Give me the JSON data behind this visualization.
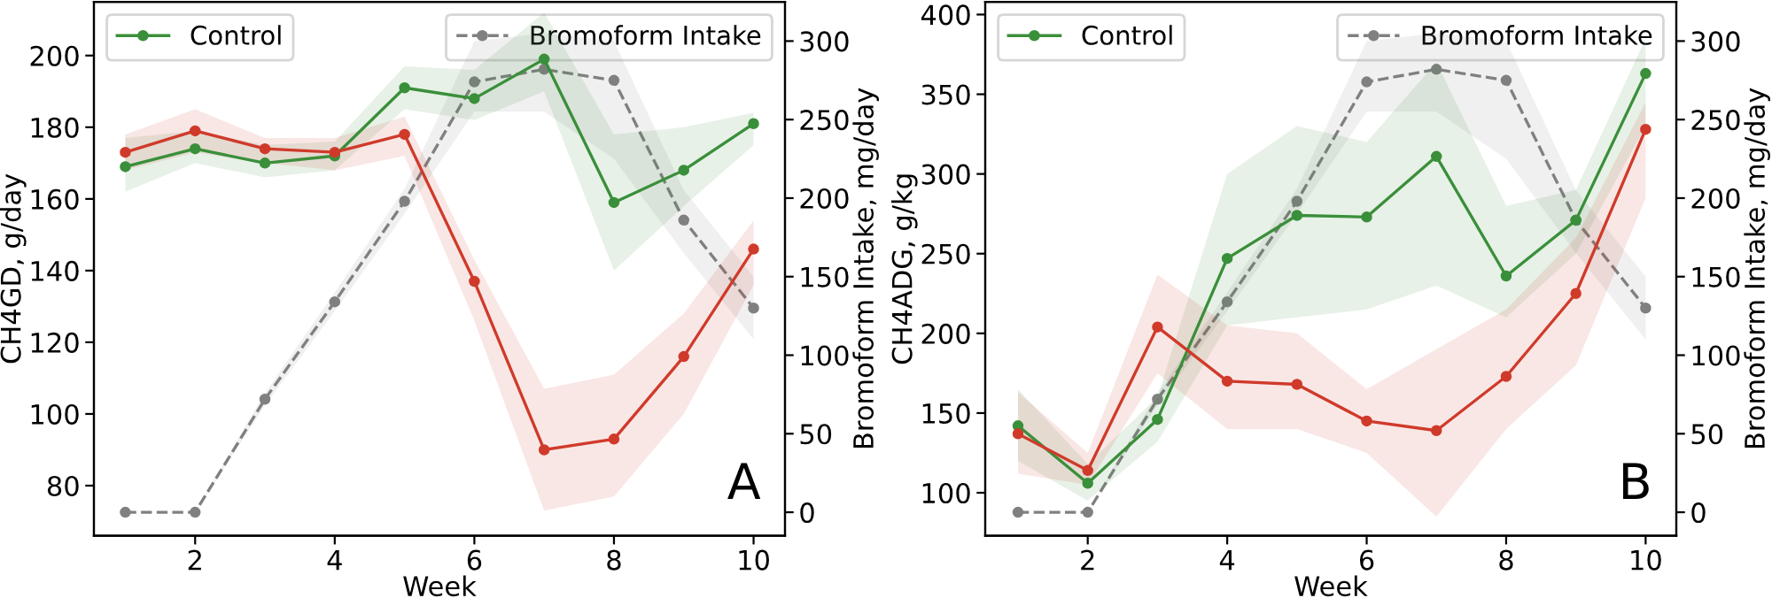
{
  "chart_data": [
    {
      "type": "line",
      "xlabel": "Week",
      "ylabel": "CH4GD, g/day",
      "y2label": "Bromoform Intake, mg/day",
      "annotations": [
        "A"
      ],
      "x": [
        1,
        2,
        3,
        4,
        5,
        6,
        7,
        8,
        9,
        10
      ],
      "xlim": [
        0.55,
        10.45
      ],
      "xticks": [
        2,
        4,
        6,
        8,
        10
      ],
      "ylim": [
        66,
        215
      ],
      "yticks": [
        80,
        100,
        120,
        140,
        160,
        180,
        200
      ],
      "y2lim": [
        -15,
        325
      ],
      "y2ticks": [
        0,
        50,
        100,
        150,
        200,
        250,
        300
      ],
      "marker": "circle",
      "legend": "top left",
      "grid": false,
      "series": [
        {
          "name": "Control",
          "color": "#3a8f3a",
          "values": [
            169,
            174,
            170,
            172,
            191,
            188,
            199,
            159,
            168,
            181
          ],
          "lower": [
            162,
            170,
            166,
            168,
            185,
            182,
            190,
            140,
            158,
            175
          ],
          "upper": [
            177,
            179,
            175,
            176,
            197,
            196,
            212,
            178,
            180,
            184
          ]
        },
        {
          "color": "#d03a2a",
          "values": [
            173,
            179,
            174,
            173,
            178,
            137,
            90,
            93,
            116,
            146
          ],
          "lower": [
            168,
            173,
            170,
            168,
            172,
            126,
            73,
            77,
            100,
            136
          ],
          "upper": [
            178,
            185,
            177,
            177,
            183,
            143,
            107,
            111,
            128,
            154
          ]
        },
        {
          "name": "Bromoform Intake",
          "color": "#808080",
          "axis": "y2",
          "line_style": "dashed",
          "values": [
            0,
            0,
            72,
            134,
            198,
            274,
            282,
            275,
            186,
            130
          ],
          "lower": [
            0,
            0,
            68,
            128,
            190,
            255,
            255,
            225,
            165,
            110
          ],
          "upper": [
            0,
            0,
            76,
            140,
            206,
            300,
            305,
            300,
            205,
            150
          ]
        }
      ]
    },
    {
      "type": "line",
      "xlabel": "Week",
      "ylabel": "CH4ADG, g/kg",
      "y2label": "Bromoform Intake, mg/day",
      "annotations": [
        "B"
      ],
      "x": [
        1,
        2,
        3,
        4,
        5,
        6,
        7,
        8,
        9,
        10
      ],
      "xlim": [
        0.53,
        10.44
      ],
      "xticks": [
        2,
        4,
        6,
        8,
        10
      ],
      "ylim": [
        73,
        408
      ],
      "yticks": [
        100,
        150,
        200,
        250,
        300,
        350,
        400
      ],
      "y2lim": [
        -15,
        325
      ],
      "y2ticks": [
        0,
        50,
        100,
        150,
        200,
        250,
        300
      ],
      "marker": "circle",
      "legend": "top left",
      "grid": false,
      "series": [
        {
          "name": "Control",
          "color": "#3a8f3a",
          "values": [
            142,
            106,
            146,
            247,
            274,
            273,
            311,
            236,
            271,
            363
          ],
          "lower": [
            120,
            95,
            132,
            205,
            210,
            215,
            230,
            210,
            250,
            330
          ],
          "upper": [
            165,
            118,
            160,
            300,
            330,
            320,
            370,
            280,
            290,
            385
          ]
        },
        {
          "color": "#d03a2a",
          "values": [
            137,
            114,
            204,
            170,
            168,
            145,
            139,
            173,
            225,
            328
          ],
          "lower": [
            112,
            105,
            175,
            140,
            140,
            125,
            85,
            140,
            180,
            285
          ],
          "upper": [
            163,
            125,
            237,
            205,
            200,
            165,
            190,
            215,
            260,
            345
          ]
        },
        {
          "name": "Bromoform Intake",
          "color": "#808080",
          "axis": "y2",
          "line_style": "dashed",
          "values": [
            0,
            0,
            72,
            134,
            198,
            274,
            282,
            275,
            186,
            130
          ],
          "lower": [
            0,
            0,
            68,
            128,
            190,
            255,
            255,
            225,
            165,
            110
          ],
          "upper": [
            0,
            0,
            76,
            140,
            206,
            300,
            305,
            300,
            205,
            150
          ]
        }
      ]
    }
  ]
}
